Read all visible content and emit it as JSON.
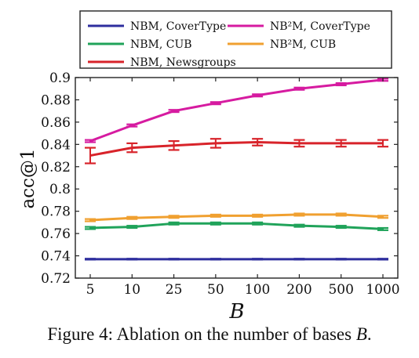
{
  "chart_data": {
    "type": "line",
    "ylabel": "acc@1",
    "xlabel": "B",
    "x": [
      5,
      10,
      25,
      50,
      100,
      200,
      500,
      1000
    ],
    "x_tick_labels": [
      "5",
      "10",
      "25",
      "50",
      "100",
      "200",
      "500",
      "1000"
    ],
    "ylim": [
      0.72,
      0.9
    ],
    "y_ticks": [
      "0.72",
      "0.74",
      "0.76",
      "0.78",
      "0.8",
      "0.82",
      "0.84",
      "0.86",
      "0.88",
      "0.9"
    ],
    "legend_position": "top",
    "series": [
      {
        "name": "NBM, CoverType",
        "color": "#2e2e9e",
        "values": [
          0.737,
          0.737,
          0.737,
          0.737,
          0.737,
          0.737,
          0.737,
          0.737
        ],
        "error": [
          0.0004,
          0.0004,
          0.0004,
          0.0004,
          0.0004,
          0.0004,
          0.0004,
          0.0004
        ]
      },
      {
        "name": "NBM, CUB",
        "color": "#20a35a",
        "values": [
          0.765,
          0.766,
          0.769,
          0.769,
          0.769,
          0.767,
          0.766,
          0.764
        ],
        "error": [
          0.001,
          0.001,
          0.001,
          0.001,
          0.001,
          0.001,
          0.001,
          0.001
        ]
      },
      {
        "name": "NBM, Newsgroups",
        "color": "#d8232a",
        "values": [
          0.83,
          0.837,
          0.839,
          0.841,
          0.842,
          0.841,
          0.841,
          0.841
        ],
        "error": [
          0.007,
          0.004,
          0.004,
          0.004,
          0.003,
          0.003,
          0.003,
          0.003
        ]
      },
      {
        "name": "NB²M, CoverType",
        "color": "#d61ba0",
        "values": [
          0.843,
          0.857,
          0.87,
          0.877,
          0.884,
          0.89,
          0.894,
          0.898
        ],
        "error": [
          0.001,
          0.001,
          0.001,
          0.001,
          0.001,
          0.001,
          0.001,
          0.001
        ]
      },
      {
        "name": "NB²M, CUB",
        "color": "#f0a030",
        "values": [
          0.772,
          0.774,
          0.775,
          0.776,
          0.776,
          0.777,
          0.777,
          0.775
        ],
        "error": [
          0.001,
          0.001,
          0.001,
          0.001,
          0.001,
          0.001,
          0.001,
          0.001
        ]
      }
    ]
  },
  "caption": {
    "text": "Figure 4: Ablation on the number of bases ",
    "var": "B",
    "end": "."
  }
}
